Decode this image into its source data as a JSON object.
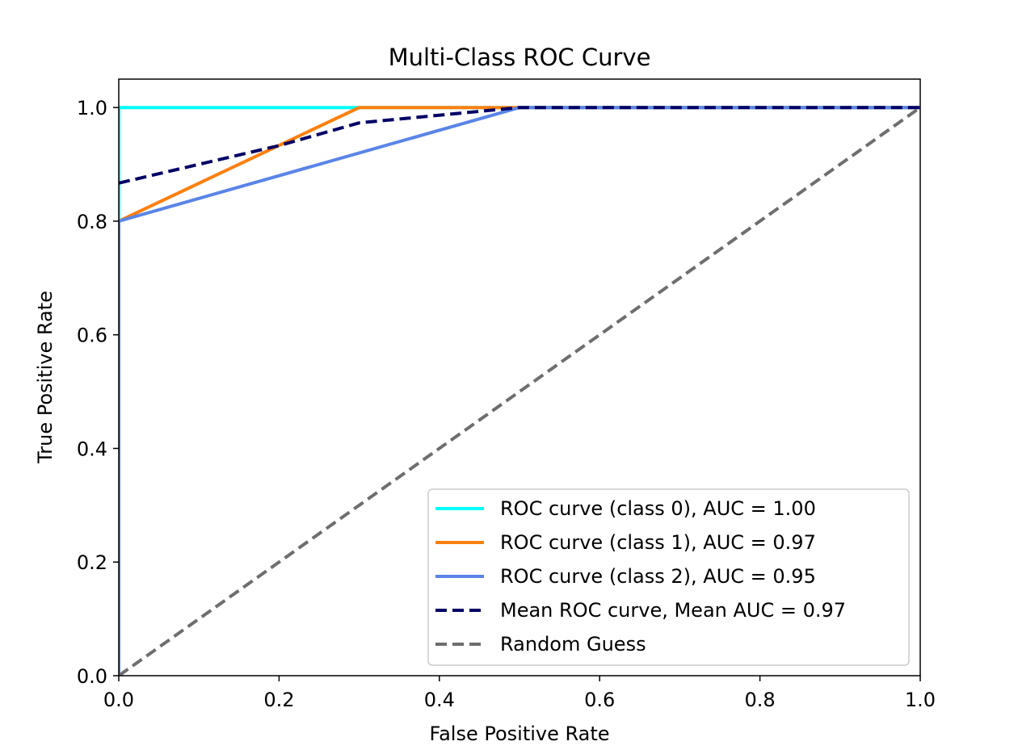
{
  "chart_data": {
    "type": "line",
    "title": "Multi-Class ROC Curve",
    "xlabel": "False Positive Rate",
    "ylabel": "True Positive Rate",
    "xlim": [
      0.0,
      1.0
    ],
    "ylim": [
      0.0,
      1.05
    ],
    "x_ticks": [
      "0.0",
      "0.2",
      "0.4",
      "0.6",
      "0.8",
      "1.0"
    ],
    "y_ticks": [
      "0.0",
      "0.2",
      "0.4",
      "0.6",
      "0.8",
      "1.0"
    ],
    "grid": false,
    "legend_position": "lower-right",
    "series": [
      {
        "name": "ROC curve (class 0), AUC = 1.00",
        "color": "#00ffff",
        "dash": "solid",
        "x": [
          0.0,
          0.0,
          1.0
        ],
        "y": [
          0.0,
          1.0,
          1.0
        ]
      },
      {
        "name": "ROC curve (class 1), AUC = 0.97",
        "color": "#ff7f0e",
        "dash": "solid",
        "x": [
          0.0,
          0.0,
          0.3,
          1.0
        ],
        "y": [
          0.0,
          0.8,
          1.0,
          1.0
        ]
      },
      {
        "name": "ROC curve (class 2), AUC = 0.95",
        "color": "#5a84e8",
        "dash": "solid",
        "x": [
          0.0,
          0.0,
          0.5,
          1.0
        ],
        "y": [
          0.0,
          0.8,
          1.0,
          1.0
        ]
      },
      {
        "name": "Mean ROC curve, Mean AUC = 0.97",
        "color": "#000066",
        "dash": "dashed",
        "x": [
          0.0,
          0.2,
          0.3,
          0.5,
          1.0
        ],
        "y": [
          0.867,
          0.933,
          0.973,
          1.0,
          1.0
        ]
      },
      {
        "name": "Random Guess",
        "color": "#6e6e6e",
        "dash": "dashed",
        "x": [
          0.0,
          1.0
        ],
        "y": [
          0.0,
          1.0
        ]
      }
    ]
  }
}
